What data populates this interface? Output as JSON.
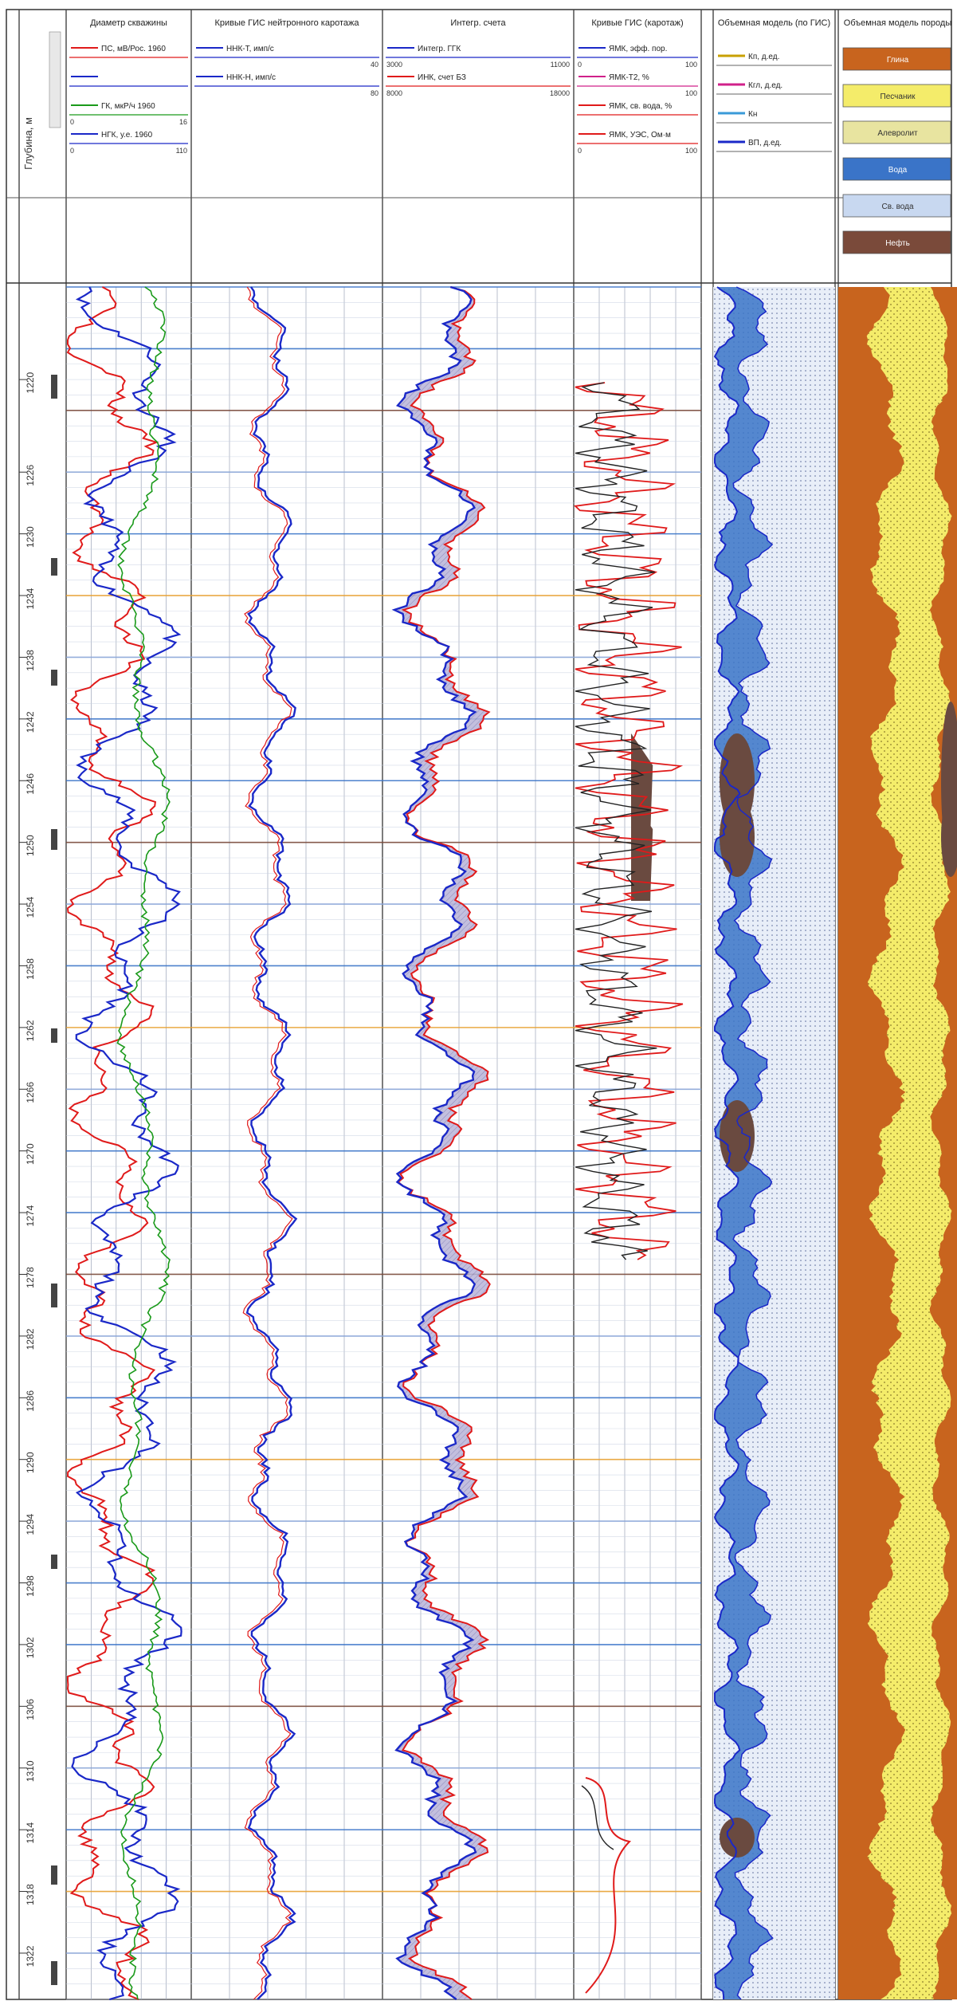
{
  "header": {
    "depth_title": "Глубина, м",
    "panels": {
      "p1": {
        "title": "Диаметр скважины"
      },
      "p2": {
        "title": "Кривые ГИС нейтронного каротажа"
      },
      "p3": {
        "title": "Интегр. счета"
      },
      "p4": {
        "title": "Кривые ГИС (каротаж)"
      },
      "p5": {
        "title": "Объемная модель (по ГИС)"
      },
      "p6": {
        "title": "Объемная модель породы"
      }
    },
    "p1_legend": [
      {
        "label": "ПС, мВ/Рос. 1960",
        "color": "#e01a1a",
        "min": "",
        "max": "",
        "name": "PS"
      },
      {
        "label": "",
        "color": "#1a28c8",
        "min": "",
        "max": "",
        "name": "GK"
      },
      {
        "label": "ГК, мкР/ч 1960",
        "color": "#1a9a1a",
        "min": "0",
        "max": "16",
        "name": "GK-green"
      },
      {
        "label": "НГК, у.е. 1960",
        "color": "#1a28c8",
        "min": "0",
        "max": "110",
        "name": "NGK"
      }
    ],
    "p2_legend": [
      {
        "label": "ННК-Т, имп/с",
        "color": "#1a28c8",
        "min": "",
        "max": "40",
        "name": "NNK-T"
      },
      {
        "label": "ННК-Н, имп/с",
        "color": "#1a28c8",
        "min": "",
        "max": "80",
        "name": "NNK-N"
      }
    ],
    "p3_legend": [
      {
        "label": "Интегр. ГГК",
        "color": "#1a28c8",
        "min": "3000",
        "max": "11000",
        "name": "GGK"
      },
      {
        "label": "ИНК, счет БЗ",
        "color": "#e01a1a",
        "min": "8000",
        "max": "18000",
        "name": "INK"
      }
    ],
    "p4_legend": [
      {
        "label": "ЯМК, эфф. пор.",
        "color": "#1a28c8",
        "min": "0",
        "max": "100",
        "name": "NMR-1"
      },
      {
        "label": "ЯМК-Т2, %",
        "color": "#d0208a",
        "min": "",
        "max": "100",
        "name": "NMR-2"
      },
      {
        "label": "ЯМК, св. вода, %",
        "color": "#e01a1a",
        "min": "",
        "max": "",
        "name": "NMR-3"
      },
      {
        "label": "ЯМК, УЭС, Ом·м",
        "color": "#e01a1a",
        "min": "0",
        "max": "100",
        "name": "NMR-4"
      }
    ],
    "p5_legend": [
      {
        "label": "Кп, д.ед.",
        "color": "#c8a000",
        "name": "kp"
      },
      {
        "label": "Кгл, д.ед.",
        "color": "#d0208a",
        "name": "kgl"
      },
      {
        "label": "Кн",
        "color": "#3a9ad8",
        "name": "kn"
      },
      {
        "label": "ВП, д.ед.",
        "color": "#1a28c8",
        "name": "vp"
      }
    ],
    "p6_legend": [
      {
        "label": "Глина",
        "bg": "#c8641e",
        "color": "#fff",
        "name": "clay"
      },
      {
        "label": "Песчаник",
        "bg": "#f4ec6a",
        "color": "#333",
        "name": "sandstone"
      },
      {
        "label": "Алевролит",
        "bg": "#e8e4a0",
        "color": "#333",
        "name": "siltstone"
      },
      {
        "label": "Вода",
        "bg": "#3a74c8",
        "color": "#fff",
        "name": "water"
      },
      {
        "label": "Св. вода",
        "bg": "#c8d8f0",
        "color": "#333",
        "name": "free-water"
      },
      {
        "label": "Нефть",
        "bg": "#7a4a3a",
        "color": "#fff",
        "name": "oil"
      }
    ]
  },
  "chart_data": {
    "type": "line",
    "title": "",
    "ylabel": "Глубина, м",
    "depth_ticks": [
      1220,
      1226,
      1230,
      1234,
      1238,
      1242,
      1246,
      1250,
      1254,
      1258,
      1262,
      1266,
      1270,
      1274,
      1278,
      1282,
      1286,
      1290,
      1294,
      1298,
      1302,
      1306,
      1310,
      1314,
      1318,
      1322
    ],
    "depth_range": [
      1214,
      1325
    ]
  }
}
